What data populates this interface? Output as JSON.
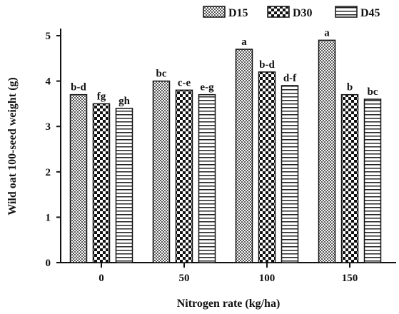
{
  "chart_data": {
    "type": "bar",
    "title": "",
    "xlabel": "Nitrogen rate (kg/ha)",
    "ylabel": "Wild oat 100-seed weight (g)",
    "ylim": [
      0,
      5
    ],
    "yticks": [
      "0",
      "1",
      "2",
      "3",
      "4",
      "5"
    ],
    "categories": [
      "0",
      "50",
      "100",
      "150"
    ],
    "series": [
      {
        "name": "D15",
        "values": [
          3.7,
          4.0,
          4.7,
          4.9
        ],
        "labels": [
          "b-d",
          "bc",
          "a",
          "a"
        ]
      },
      {
        "name": "D30",
        "values": [
          3.5,
          3.8,
          4.2,
          3.7
        ],
        "labels": [
          "fg",
          "c-e",
          "b-d",
          "b"
        ]
      },
      {
        "name": "D45",
        "values": [
          3.4,
          3.7,
          3.9,
          3.6
        ],
        "labels": [
          "gh",
          "e-g",
          "d-f",
          "bc"
        ]
      }
    ],
    "legend_position": "top-right",
    "grid": false
  }
}
